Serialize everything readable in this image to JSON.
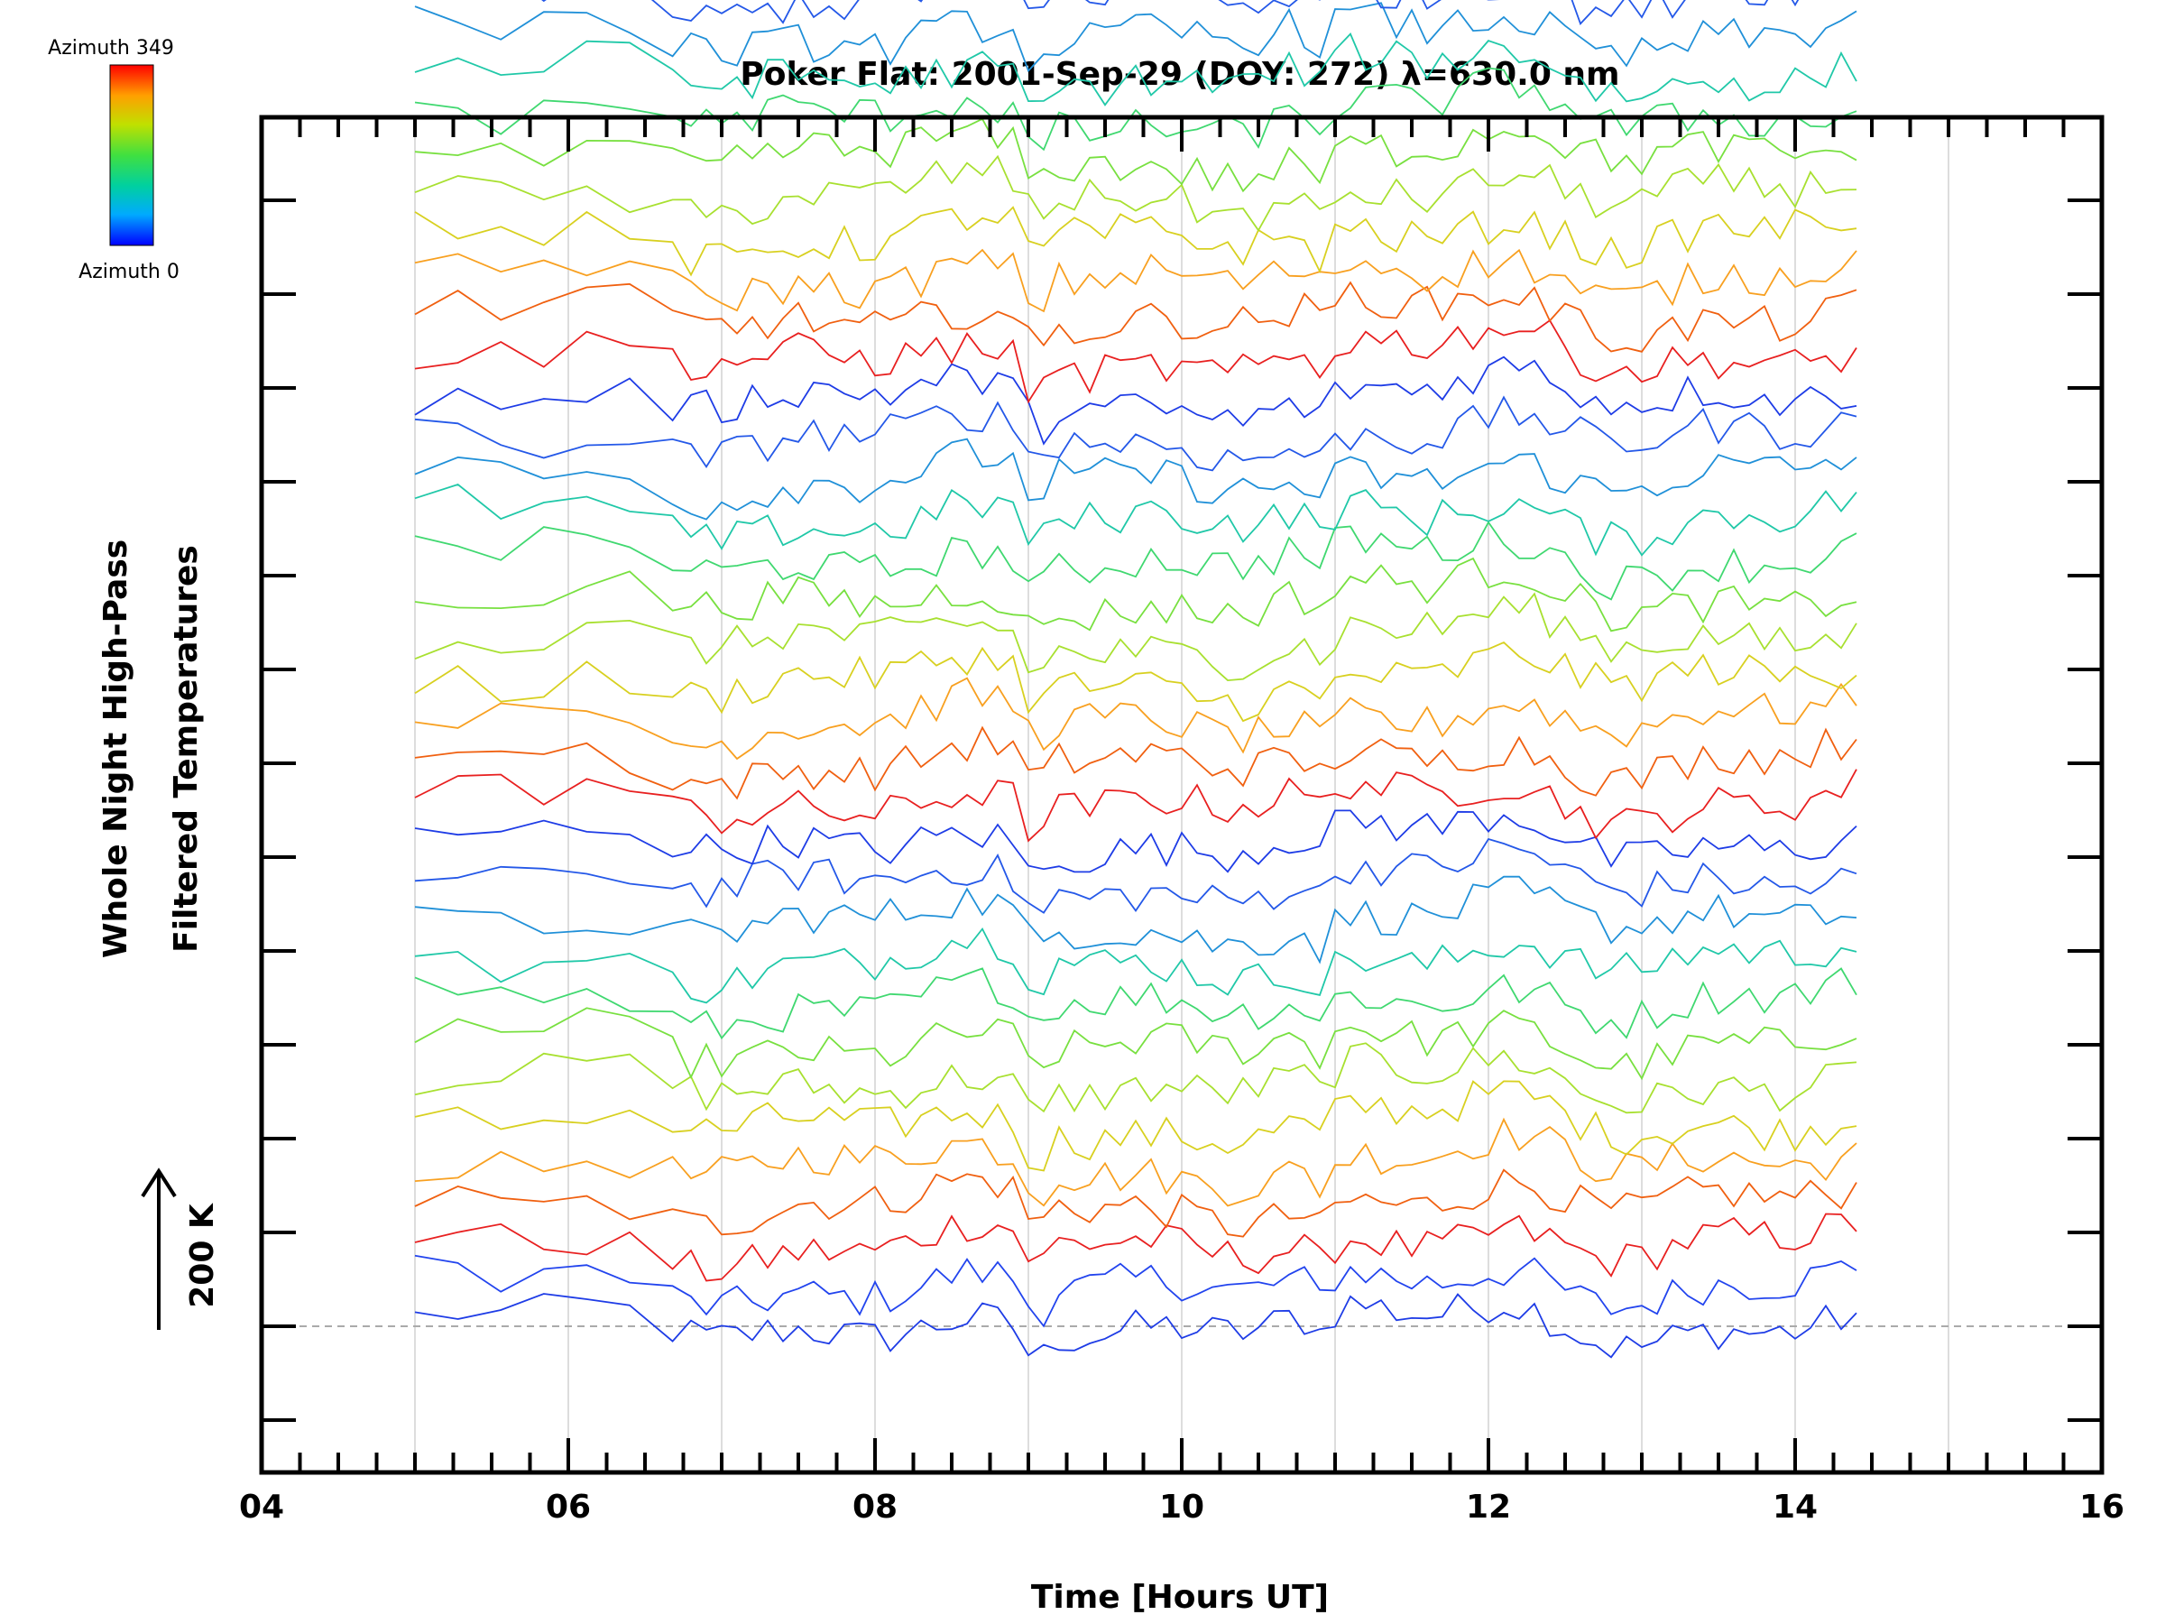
{
  "chart_data": {
    "type": "line",
    "title": "Poker Flat: 2001-Sep-29 (DOY: 272) λ=630.0 nm",
    "xlabel": "Time [Hours UT]",
    "ylabel_line1": "Whole Night High-Pass",
    "ylabel_line2": "Filtered Temperatures",
    "xlim": [
      4,
      16
    ],
    "x_tick_labels": [
      "04",
      "06",
      "08",
      "10",
      "12",
      "14",
      "16"
    ],
    "x_ticks": [
      4,
      6,
      8,
      10,
      12,
      14,
      16
    ],
    "x_minor_step": 0.25,
    "x_gridlines": [
      5,
      6,
      7,
      8,
      9,
      10,
      11,
      12,
      13,
      14,
      15
    ],
    "y_unit_offset_K": 100,
    "scale_bar_label": "200 K",
    "scale_bar_K": 200,
    "series_count": 36,
    "series_offset_K": 100,
    "x_start": 5.0,
    "x_end": 14.45,
    "colorbar": {
      "top_label": "Azimuth 349",
      "bottom_label": "Azimuth 0",
      "colormap": [
        "#0000ff",
        "#00aaff",
        "#00d0a0",
        "#40e040",
        "#c0e000",
        "#ffa000",
        "#ff0000"
      ]
    },
    "series_colors": [
      "#1e3ce6",
      "#2244ee",
      "#e82020",
      "#f06010",
      "#f8a020",
      "#d8d020",
      "#a8e030",
      "#78e040",
      "#40d870",
      "#20c8a8",
      "#2090d8",
      "#2458e8",
      "#1e3ce6",
      "#e82020",
      "#f06010",
      "#f8a020",
      "#d8d020",
      "#a8e030",
      "#78e040",
      "#40d870",
      "#20c8a8",
      "#2090d8",
      "#2458e8",
      "#1e3ce6",
      "#e82020",
      "#f06010",
      "#f8a020",
      "#d8d020",
      "#a8e030",
      "#78e040",
      "#40d870",
      "#20c8a8",
      "#2090d8",
      "#2458e8",
      "#1e3ce6",
      "#2090d8"
    ],
    "y_reference_line_K": 0,
    "grid": "vertical lines at each hour"
  }
}
